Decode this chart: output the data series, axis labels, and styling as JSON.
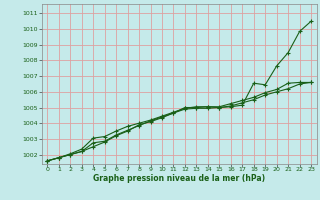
{
  "xlabel": "Graphe pression niveau de la mer (hPa)",
  "xlim": [
    -0.5,
    23.5
  ],
  "ylim": [
    1001.4,
    1011.6
  ],
  "yticks": [
    1002,
    1003,
    1004,
    1005,
    1006,
    1007,
    1008,
    1009,
    1010,
    1011
  ],
  "xticks": [
    0,
    1,
    2,
    3,
    4,
    5,
    6,
    7,
    8,
    9,
    10,
    11,
    12,
    13,
    14,
    15,
    16,
    17,
    18,
    19,
    20,
    21,
    22,
    23
  ],
  "background_color": "#c5eaea",
  "grid_color": "#dea0a0",
  "line_color": "#1a6018",
  "line1_x": [
    0,
    1,
    2,
    3,
    4,
    5,
    6,
    7,
    8,
    9,
    10,
    11,
    12,
    13,
    14,
    15,
    16,
    17,
    18,
    19,
    20,
    21,
    22,
    23
  ],
  "line1_y": [
    1001.6,
    1001.8,
    1002.0,
    1002.2,
    1002.5,
    1002.8,
    1003.2,
    1003.5,
    1003.9,
    1004.1,
    1004.35,
    1004.65,
    1005.0,
    1005.0,
    1005.05,
    1005.0,
    1005.05,
    1005.15,
    1006.55,
    1006.45,
    1007.65,
    1008.5,
    1009.85,
    1010.5
  ],
  "line2_x": [
    0,
    1,
    2,
    3,
    4,
    5,
    6,
    7,
    8,
    9,
    10,
    11,
    12,
    13,
    14,
    15,
    16,
    17,
    18,
    19,
    20,
    21,
    22,
    23
  ],
  "line2_y": [
    1001.6,
    1001.8,
    1002.05,
    1002.35,
    1003.05,
    1003.15,
    1003.5,
    1003.8,
    1004.0,
    1004.2,
    1004.45,
    1004.7,
    1004.95,
    1005.05,
    1005.05,
    1005.05,
    1005.25,
    1005.45,
    1005.65,
    1005.95,
    1006.15,
    1006.55,
    1006.6,
    1006.6
  ],
  "line3_x": [
    0,
    1,
    2,
    3,
    4,
    5,
    6,
    7,
    8,
    9,
    10,
    11,
    12,
    13,
    14,
    15,
    16,
    17,
    18,
    19,
    20,
    21,
    22,
    23
  ],
  "line3_y": [
    1001.6,
    1001.8,
    1002.0,
    1002.2,
    1002.75,
    1002.85,
    1003.25,
    1003.55,
    1003.85,
    1004.15,
    1004.4,
    1004.65,
    1004.9,
    1004.95,
    1004.95,
    1005.0,
    1005.1,
    1005.3,
    1005.5,
    1005.8,
    1006.0,
    1006.2,
    1006.5,
    1006.6
  ]
}
